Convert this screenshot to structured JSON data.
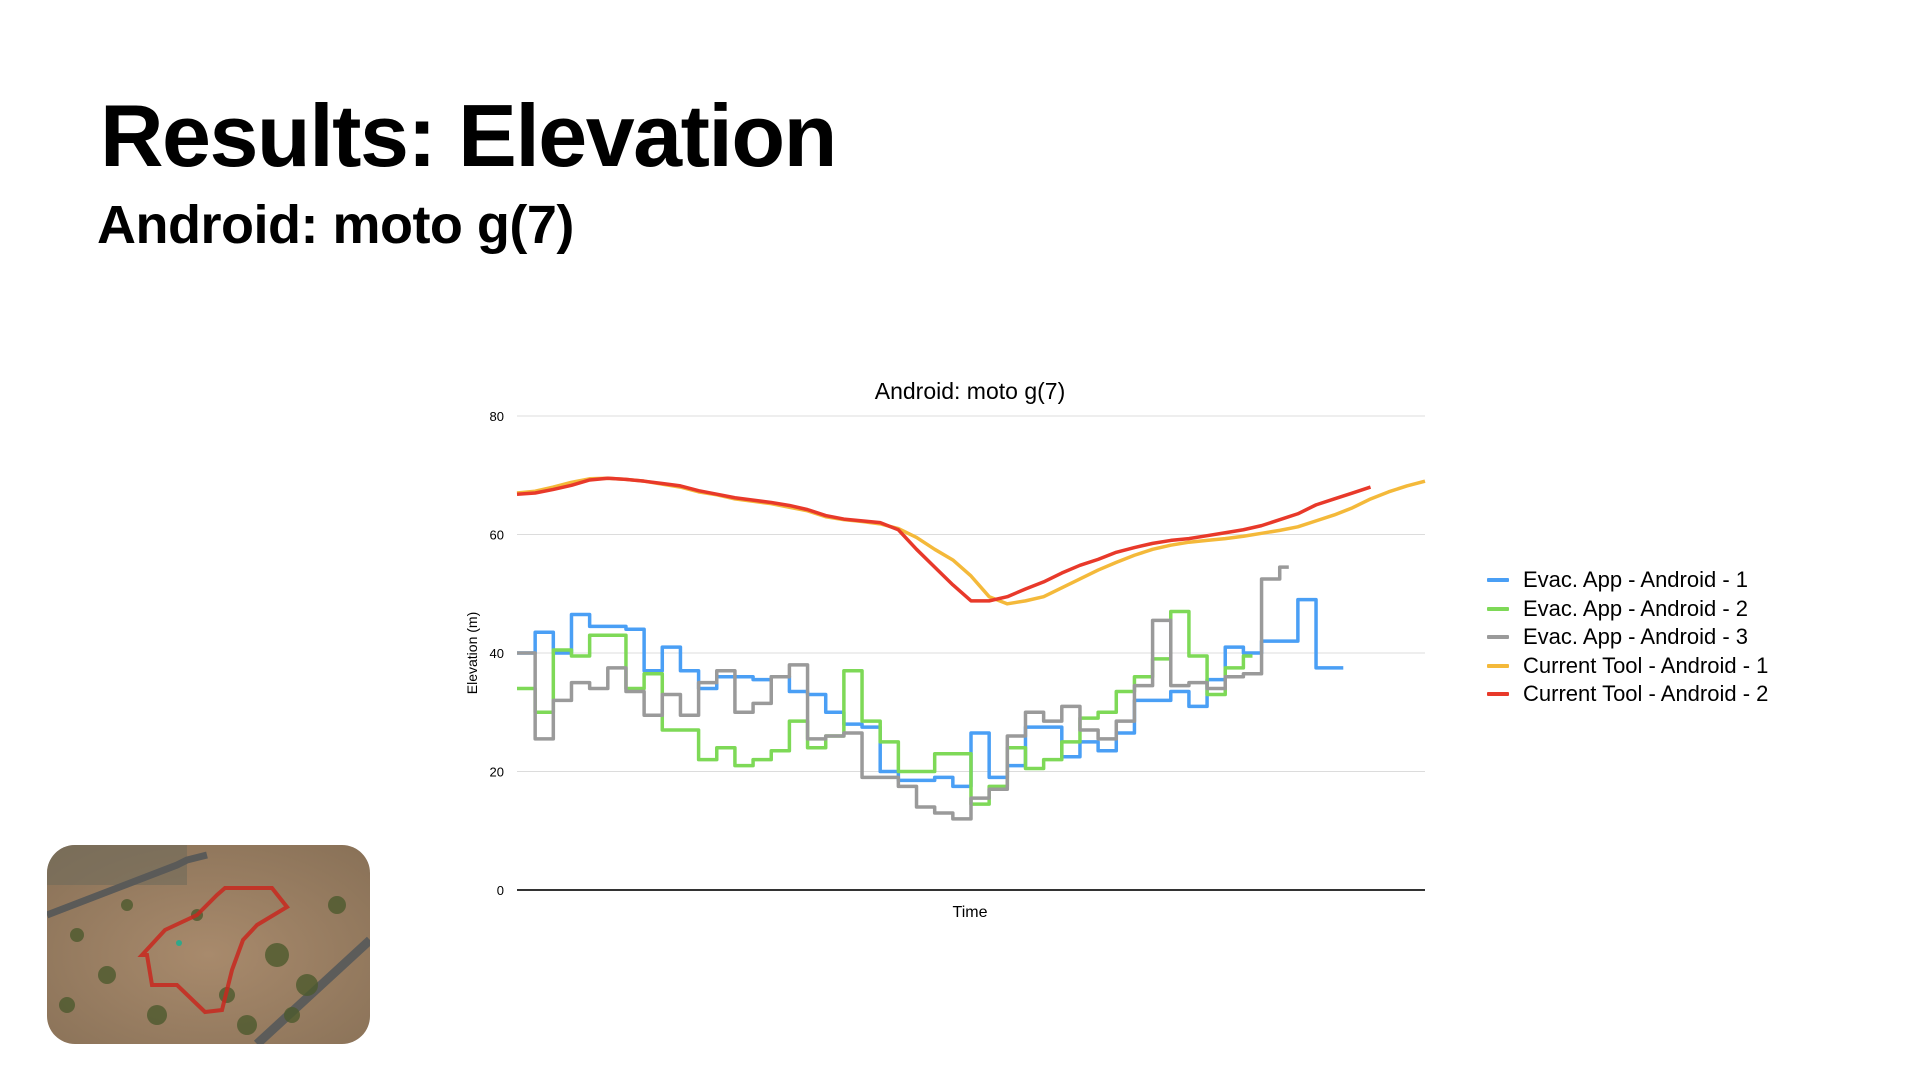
{
  "slide": {
    "title": "Results: Elevation",
    "subtitle": "Android: moto g(7)"
  },
  "chart_data": {
    "type": "line",
    "title": "Android: moto g(7)",
    "xlabel": "Time",
    "ylabel": "Elevation (m)",
    "ylim": [
      0,
      80
    ],
    "yticks": [
      "0",
      "20",
      "40",
      "60",
      "80"
    ],
    "grid": true,
    "legend_position": "right",
    "series": [
      {
        "name": "Evac. App - Android - 1",
        "color": "#4a9ff5",
        "values": [
          40,
          43.5,
          40,
          46.5,
          44.5,
          44.5,
          44,
          37,
          41,
          37,
          34,
          36,
          36,
          35.5,
          36,
          33.5,
          33,
          30,
          28,
          27.5,
          20,
          18.5,
          18.5,
          19,
          17.5,
          26.5,
          19,
          21,
          27.5,
          27.5,
          22.5,
          25,
          23.5,
          26.5,
          32,
          32,
          33.5,
          31,
          35.5,
          41,
          40,
          42,
          42,
          49,
          37.5,
          37.5
        ]
      },
      {
        "name": "Evac. App - Android - 2",
        "color": "#7ed957",
        "values": [
          34,
          30,
          40.5,
          39.5,
          43,
          43,
          34,
          36.5,
          27,
          27,
          22,
          24,
          21,
          22,
          23.5,
          28.5,
          24,
          26,
          37,
          28.5,
          25,
          20,
          20,
          23,
          23,
          14.5,
          17.5,
          24,
          20.5,
          22,
          25,
          29,
          30,
          33.5,
          36,
          39,
          47,
          39.5,
          33,
          37.5,
          39.5
        ]
      },
      {
        "name": "Evac. App - Android - 3",
        "color": "#9a9a9a",
        "values": [
          40,
          25.5,
          32,
          35,
          34,
          37.5,
          33.5,
          29.5,
          33,
          29.5,
          35,
          37,
          30,
          31.5,
          36,
          38,
          25.5,
          26,
          26.5,
          19,
          19,
          17.5,
          14,
          13,
          12,
          15.5,
          17,
          26,
          30,
          28.5,
          31,
          27,
          25.5,
          28.5,
          34.5,
          45.5,
          34.5,
          35,
          34,
          36,
          36.5,
          52.5,
          54.5
        ]
      },
      {
        "name": "Current Tool - Android - 1",
        "color": "#f4b93a",
        "values": [
          67,
          67.3,
          68,
          68.8,
          69.4,
          69.5,
          69.3,
          69,
          68.5,
          68,
          67.2,
          66.7,
          66,
          65.6,
          65.2,
          64.6,
          64,
          63,
          62.5,
          62.2,
          61.8,
          61,
          59.5,
          57.5,
          55.7,
          53,
          49.5,
          48.3,
          48.8,
          49.5,
          51,
          52.5,
          54,
          55.3,
          56.5,
          57.5,
          58.2,
          58.7,
          59,
          59.3,
          59.7,
          60.2,
          60.7,
          61.3,
          62.3,
          63.3,
          64.5,
          66,
          67.2,
          68.2,
          69
        ]
      },
      {
        "name": "Current Tool - Android - 2",
        "color": "#e8392a",
        "values": [
          66.8,
          67,
          67.6,
          68.3,
          69.2,
          69.5,
          69.3,
          69,
          68.6,
          68.2,
          67.4,
          66.8,
          66.2,
          65.8,
          65.4,
          64.9,
          64.2,
          63.2,
          62.6,
          62.3,
          62,
          60.8,
          57.5,
          54.5,
          51.5,
          48.8,
          48.8,
          49.5,
          50.8,
          52,
          53.5,
          54.8,
          55.8,
          57,
          57.8,
          58.5,
          59,
          59.3,
          59.8,
          60.3,
          60.8,
          61.5,
          62.5,
          63.5,
          65,
          66,
          67,
          68
        ]
      }
    ]
  }
}
